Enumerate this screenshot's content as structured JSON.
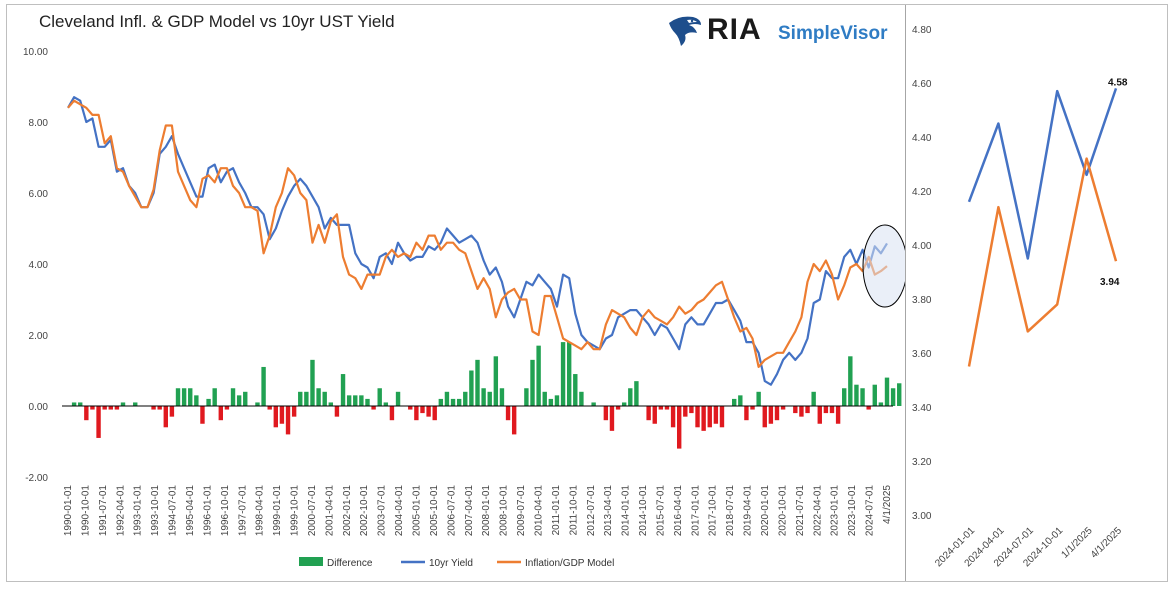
{
  "title": "Cleveland Infl. & GDP Model vs 10yr UST Yield",
  "brand": {
    "name": "RIA",
    "product": "SimpleVisor",
    "logo_icon": "eagle-icon"
  },
  "colors": {
    "yield": "#4472c4",
    "model": "#ed7d31",
    "diff_pos": "#21a152",
    "diff_neg": "#e0191f",
    "highlight": "#d9e1f2"
  },
  "chart_data": [
    {
      "type": "line",
      "ylim": [
        -2,
        10
      ],
      "yticks": [
        "-2.00",
        "0.00",
        "2.00",
        "4.00",
        "6.00",
        "8.00",
        "10.00"
      ],
      "xticks": [
        "1990-01-01",
        "1990-10-01",
        "1991-07-01",
        "1992-04-01",
        "1993-01-01",
        "1993-10-01",
        "1994-07-01",
        "1995-04-01",
        "1996-01-01",
        "1996-10-01",
        "1997-07-01",
        "1998-04-01",
        "1999-01-01",
        "1999-10-01",
        "2000-07-01",
        "2001-04-01",
        "2002-01-01",
        "2002-10-01",
        "2003-07-01",
        "2004-04-01",
        "2005-01-01",
        "2005-10-01",
        "2006-07-01",
        "2007-04-01",
        "2008-01-01",
        "2008-10-01",
        "2009-07-01",
        "2010-04-01",
        "2011-01-01",
        "2011-10-01",
        "2012-07-01",
        "2013-04-01",
        "2014-01-01",
        "2014-10-01",
        "2015-07-01",
        "2016-04-01",
        "2017-01-01",
        "2017-10-01",
        "2018-07-01",
        "2019-04-01",
        "2020-01-01",
        "2020-10-01",
        "2021-07-01",
        "2022-04-01",
        "2023-01-01",
        "2023-10-01",
        "2024-07-01",
        "4/1/2025"
      ],
      "legend": [
        "Difference",
        "10yr Yield",
        "Inflation/GDP Model"
      ],
      "series": [
        {
          "name": "10yr Yield",
          "values": [
            8.4,
            8.7,
            8.6,
            8.0,
            8.1,
            7.3,
            7.3,
            7.5,
            6.6,
            6.7,
            6.2,
            6.0,
            5.6,
            5.6,
            6.0,
            7.1,
            7.3,
            7.6,
            7.1,
            6.7,
            6.3,
            5.9,
            5.9,
            6.7,
            6.8,
            6.3,
            6.6,
            6.7,
            6.3,
            6.0,
            5.6,
            5.6,
            5.4,
            4.7,
            5.0,
            5.5,
            5.9,
            6.2,
            6.4,
            6.2,
            5.9,
            5.6,
            5.0,
            5.3,
            5.1,
            5.1,
            5.1,
            4.3,
            4.0,
            3.9,
            3.6,
            4.2,
            4.3,
            4.0,
            4.6,
            4.3,
            4.1,
            4.2,
            4.2,
            4.5,
            4.4,
            4.6,
            5.0,
            4.8,
            4.6,
            4.7,
            4.8,
            4.6,
            4.1,
            3.7,
            3.9,
            3.5,
            2.8,
            2.5,
            3.0,
            3.5,
            3.4,
            3.7,
            3.5,
            3.3,
            2.8,
            3.7,
            3.6,
            2.6,
            2.0,
            1.8,
            1.7,
            1.6,
            1.9,
            2.0,
            2.5,
            2.6,
            2.7,
            2.7,
            2.5,
            2.3,
            2.0,
            2.3,
            2.2,
            1.9,
            1.6,
            2.3,
            2.5,
            2.3,
            2.3,
            2.6,
            2.9,
            2.9,
            3.0,
            2.7,
            2.4,
            1.8,
            1.8,
            1.5,
            0.7,
            0.6,
            0.9,
            1.3,
            1.5,
            1.3,
            1.5,
            1.9,
            2.9,
            3.0,
            3.8,
            3.6,
            3.6,
            4.2,
            4.4,
            4.0,
            4.4,
            3.9,
            4.5,
            4.3,
            4.58
          ]
        },
        {
          "name": "Inflation/GDP Model",
          "values": [
            8.4,
            8.6,
            8.5,
            8.4,
            8.2,
            8.2,
            7.4,
            7.6,
            6.7,
            6.6,
            6.2,
            5.9,
            5.6,
            5.6,
            6.1,
            7.2,
            7.9,
            7.9,
            6.6,
            6.2,
            5.8,
            5.6,
            6.4,
            6.5,
            6.3,
            6.7,
            6.7,
            6.2,
            6.0,
            5.6,
            5.6,
            5.5,
            4.3,
            4.8,
            5.6,
            6.0,
            6.7,
            6.5,
            6.0,
            5.8,
            4.6,
            5.1,
            4.6,
            5.2,
            5.4,
            4.2,
            3.7,
            3.6,
            3.3,
            3.7,
            3.7,
            3.7,
            4.2,
            4.4,
            4.2,
            4.3,
            4.2,
            4.6,
            4.4,
            4.8,
            4.8,
            4.4,
            4.6,
            4.6,
            4.4,
            4.3,
            3.8,
            3.3,
            3.6,
            3.3,
            2.5,
            3.0,
            3.2,
            3.3,
            3.0,
            3.0,
            2.1,
            2.0,
            3.1,
            3.1,
            2.5,
            1.9,
            1.8,
            1.7,
            1.6,
            1.8,
            1.6,
            1.6,
            2.3,
            2.7,
            2.6,
            2.5,
            2.2,
            2.0,
            2.5,
            2.7,
            2.5,
            2.4,
            2.3,
            2.5,
            2.8,
            2.6,
            2.7,
            2.9,
            3.0,
            3.2,
            3.4,
            3.5,
            3.0,
            2.5,
            2.1,
            2.2,
            1.9,
            1.1,
            1.3,
            1.4,
            1.5,
            1.5,
            1.8,
            2.1,
            2.5,
            3.5,
            4.0,
            3.8,
            4.1,
            3.7,
            3.0,
            3.4,
            3.9,
            4.0,
            3.8,
            4.2,
            3.7,
            3.8,
            3.94
          ]
        },
        {
          "name": "Difference",
          "values": [
            0.0,
            0.1,
            0.1,
            -0.4,
            -0.1,
            -0.9,
            -0.1,
            -0.1,
            -0.1,
            0.1,
            0.0,
            0.1,
            0.0,
            0.0,
            -0.1,
            -0.1,
            -0.6,
            -0.3,
            0.5,
            0.5,
            0.5,
            0.3,
            -0.5,
            0.2,
            0.5,
            -0.4,
            -0.1,
            0.5,
            0.3,
            0.4,
            0.0,
            0.1,
            1.1,
            -0.1,
            -0.6,
            -0.5,
            -0.8,
            -0.3,
            0.4,
            0.4,
            1.3,
            0.5,
            0.4,
            0.1,
            -0.3,
            0.9,
            0.3,
            0.3,
            0.3,
            0.2,
            -0.1,
            0.5,
            0.1,
            -0.4,
            0.4,
            0.0,
            -0.1,
            -0.4,
            -0.2,
            -0.3,
            -0.4,
            0.2,
            0.4,
            0.2,
            0.2,
            0.4,
            1.0,
            1.3,
            0.5,
            0.4,
            1.4,
            0.5,
            -0.4,
            -0.8,
            0.0,
            0.5,
            1.3,
            1.7,
            0.4,
            0.2,
            0.3,
            1.8,
            1.8,
            0.9,
            0.4,
            0.0,
            0.1,
            0.0,
            -0.4,
            -0.7,
            -0.1,
            0.1,
            0.5,
            0.7,
            0.0,
            -0.4,
            -0.5,
            -0.1,
            -0.1,
            -0.6,
            -1.2,
            -0.3,
            -0.2,
            -0.6,
            -0.7,
            -0.6,
            -0.5,
            -0.6,
            0.0,
            0.2,
            0.3,
            -0.4,
            -0.1,
            0.4,
            -0.6,
            -0.5,
            -0.4,
            -0.1,
            0.0,
            -0.2,
            -0.3,
            -0.2,
            0.4,
            -0.5,
            -0.2,
            -0.2,
            -0.5,
            0.5,
            1.4,
            0.6,
            0.5,
            -0.1,
            0.6,
            0.1,
            0.8,
            0.5,
            0.64
          ]
        }
      ]
    },
    {
      "type": "line",
      "ylim": [
        3.0,
        4.8
      ],
      "yticks": [
        "3.00",
        "3.20",
        "3.40",
        "3.60",
        "3.80",
        "4.00",
        "4.20",
        "4.40",
        "4.60",
        "4.80"
      ],
      "categories": [
        "2024-01-01",
        "2024-04-01",
        "2024-07-01",
        "2024-10-01",
        "1/1/2025",
        "4/1/2025"
      ],
      "series": [
        {
          "name": "10yr Yield",
          "values": [
            4.16,
            4.45,
            3.95,
            4.57,
            4.26,
            4.58
          ]
        },
        {
          "name": "Inflation/GDP Model",
          "values": [
            3.55,
            4.14,
            3.68,
            3.78,
            4.32,
            3.94
          ]
        }
      ],
      "data_labels": [
        "4.58",
        "3.94"
      ]
    }
  ]
}
